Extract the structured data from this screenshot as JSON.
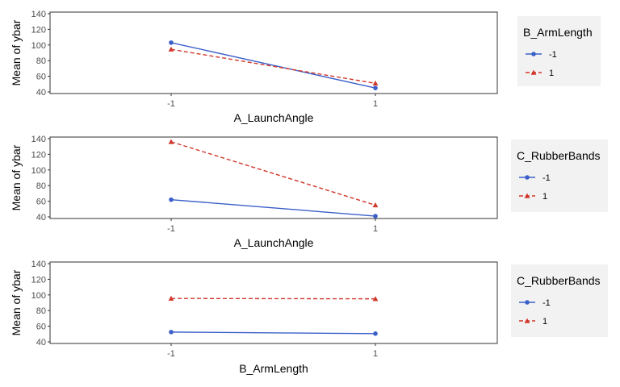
{
  "chart_data": [
    {
      "type": "line",
      "xlabel": "A_LaunchAngle",
      "ylabel": "Mean of ybar",
      "categories": [
        "-1",
        "1"
      ],
      "ylim": [
        40,
        140
      ],
      "yticks": [
        "40",
        "60",
        "80",
        "100",
        "120",
        "140"
      ],
      "legend_title": "B_ArmLength",
      "series": [
        {
          "name": "-1",
          "values": [
            103,
            45
          ],
          "color": "#3b5fc9",
          "marker": "circle",
          "dash": "solid"
        },
        {
          "name": "1",
          "values": [
            94.5,
            51
          ],
          "color": "#d1372b",
          "marker": "triangle",
          "dash": "dashed"
        }
      ]
    },
    {
      "type": "line",
      "xlabel": "A_LaunchAngle",
      "ylabel": "Mean of ybar",
      "categories": [
        "-1",
        "1"
      ],
      "ylim": [
        40,
        140
      ],
      "yticks": [
        "40",
        "60",
        "80",
        "100",
        "120",
        "140"
      ],
      "legend_title": "C_RubberBands",
      "series": [
        {
          "name": "-1",
          "values": [
            62,
            41
          ],
          "color": "#3b5fc9",
          "marker": "circle",
          "dash": "solid"
        },
        {
          "name": "1",
          "values": [
            136,
            55
          ],
          "color": "#d1372b",
          "marker": "triangle",
          "dash": "dashed"
        }
      ]
    },
    {
      "type": "line",
      "xlabel": "B_ArmLength",
      "ylabel": "Mean of ybar",
      "categories": [
        "-1",
        "1"
      ],
      "ylim": [
        40,
        140
      ],
      "yticks": [
        "40",
        "60",
        "80",
        "100",
        "120",
        "140"
      ],
      "legend_title": "C_RubberBands",
      "series": [
        {
          "name": "-1",
          "values": [
            52.5,
            50.5
          ],
          "color": "#3b5fc9",
          "marker": "circle",
          "dash": "solid"
        },
        {
          "name": "1",
          "values": [
            95.5,
            95
          ],
          "color": "#d1372b",
          "marker": "triangle",
          "dash": "dashed"
        }
      ]
    }
  ]
}
